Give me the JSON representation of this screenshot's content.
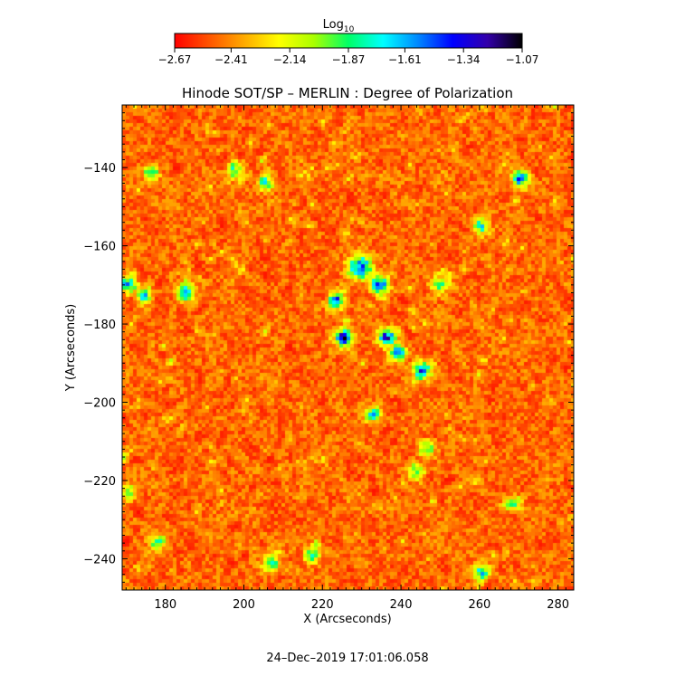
{
  "chart_data": {
    "type": "heatmap",
    "title": "Hinode SOT/SP – MERLIN : Degree of Polarization",
    "xlabel": "X (Arcseconds)",
    "ylabel": "Y (Arcseconds)",
    "xlim": [
      169,
      284
    ],
    "ylim": [
      -248,
      -124
    ],
    "x_ticks": [
      180,
      200,
      220,
      240,
      260,
      280
    ],
    "x_tick_labels": [
      "180",
      "200",
      "220",
      "240",
      "260",
      "280"
    ],
    "y_ticks": [
      -140,
      -160,
      -180,
      -200,
      -220,
      -240
    ],
    "y_tick_labels": [
      "−140",
      "−160",
      "−180",
      "−200",
      "−220",
      "−240"
    ],
    "colorbar": {
      "label_main": "Log",
      "label_sub": "10",
      "range": [
        -2.67,
        -1.07
      ],
      "ticks": [
        -2.67,
        -2.41,
        -2.14,
        -1.87,
        -1.61,
        -1.34,
        -1.07
      ],
      "tick_labels": [
        "−2.67",
        "−2.41",
        "−2.14",
        "−1.87",
        "−1.61",
        "−1.34",
        "−1.07"
      ],
      "colormap": [
        "#ff0000",
        "#ff5500",
        "#ffaa00",
        "#ffff00",
        "#aaff00",
        "#00ff66",
        "#00ffff",
        "#0088ff",
        "#0000ff",
        "#3300aa",
        "#000000"
      ]
    },
    "background_level": -2.47,
    "features": [
      {
        "x": 225.5,
        "y": -183.5,
        "level": -1.15,
        "sigma": 1.4,
        "amp": 1.0
      },
      {
        "x": 229.5,
        "y": -165.5,
        "level": -1.35,
        "sigma": 2.0,
        "amp": 1.0
      },
      {
        "x": 234.5,
        "y": -170.0,
        "level": -1.45,
        "sigma": 1.6,
        "amp": 1.0
      },
      {
        "x": 223.5,
        "y": -174.0,
        "level": -1.45,
        "sigma": 1.4,
        "amp": 1.0
      },
      {
        "x": 236.5,
        "y": -183.5,
        "level": -1.4,
        "sigma": 1.6,
        "amp": 1.0
      },
      {
        "x": 239.0,
        "y": -187.5,
        "level": -1.45,
        "sigma": 1.4,
        "amp": 1.0
      },
      {
        "x": 245.5,
        "y": -192.0,
        "level": -1.5,
        "sigma": 1.6,
        "amp": 1.0
      },
      {
        "x": 233.0,
        "y": -203.0,
        "level": -1.6,
        "sigma": 1.3,
        "amp": 1.0
      },
      {
        "x": 170.5,
        "y": -170.0,
        "level": -1.55,
        "sigma": 1.4,
        "amp": 1.0
      },
      {
        "x": 174.5,
        "y": -173.0,
        "level": -1.75,
        "sigma": 1.3,
        "amp": 1.0
      },
      {
        "x": 185.0,
        "y": -172.0,
        "level": -1.6,
        "sigma": 1.5,
        "amp": 1.0
      },
      {
        "x": 270.5,
        "y": -143.0,
        "level": -1.6,
        "sigma": 1.5,
        "amp": 1.0
      },
      {
        "x": 260.5,
        "y": -155.0,
        "level": -1.75,
        "sigma": 1.4,
        "amp": 1.0
      },
      {
        "x": 176.5,
        "y": -141.0,
        "level": -1.6,
        "sigma": 1.2,
        "amp": 1.0
      },
      {
        "x": 205.5,
        "y": -144.0,
        "level": -1.7,
        "sigma": 1.3,
        "amp": 1.0
      },
      {
        "x": 246.5,
        "y": -212.0,
        "level": -1.85,
        "sigma": 1.4,
        "amp": 1.0
      },
      {
        "x": 260.5,
        "y": -243.5,
        "level": -1.75,
        "sigma": 1.5,
        "amp": 1.0
      },
      {
        "x": 198.0,
        "y": -141.0,
        "level": -1.9,
        "sigma": 1.5,
        "amp": 1.0
      },
      {
        "x": 178.0,
        "y": -236.0,
        "level": -1.85,
        "sigma": 1.5,
        "amp": 1.0
      },
      {
        "x": 217.5,
        "y": -239.0,
        "level": -1.9,
        "sigma": 1.5,
        "amp": 1.0
      },
      {
        "x": 268.5,
        "y": -226.0,
        "level": -1.9,
        "sigma": 1.4,
        "amp": 1.0
      },
      {
        "x": 171.0,
        "y": -223.0,
        "level": -1.95,
        "sigma": 1.3,
        "amp": 1.0
      },
      {
        "x": 207.0,
        "y": -241.0,
        "level": -1.8,
        "sigma": 1.5,
        "amp": 1.0
      },
      {
        "x": 244.0,
        "y": -218.0,
        "level": -1.95,
        "sigma": 1.4,
        "amp": 1.0
      },
      {
        "x": 250.0,
        "y": -170.0,
        "level": -1.95,
        "sigma": 1.6,
        "amp": 1.0
      }
    ],
    "grid": false,
    "legend": "colorbar-top"
  },
  "timestamp": "24–Dec–2019 17:01:06.058"
}
